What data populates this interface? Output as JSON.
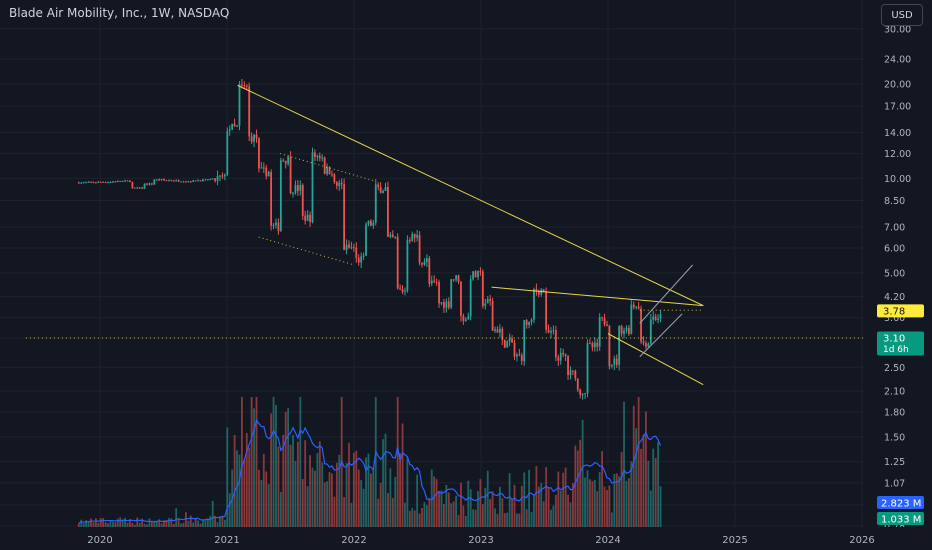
{
  "header": {
    "title": "Blade Air Mobility, Inc., 1W, NASDAQ",
    "currency_label": "USD"
  },
  "colors": {
    "background": "#131722",
    "grid": "#1e222d",
    "up": "#26a69a",
    "down": "#ef5350",
    "trendline": "#e8d44d",
    "channel": "#9aa0ab",
    "volume_ma": "#2962ff",
    "label_yellow": "#ffeb3b",
    "label_green": "#089981",
    "label_blue": "#2962ff",
    "axis_text": "#b2b5be"
  },
  "chart_data": {
    "type": "candlestick",
    "symbol": "Blade Air Mobility, Inc.",
    "interval": "1W",
    "exchange": "NASDAQ",
    "x_ticks": [
      "2020",
      "2021",
      "2022",
      "2023",
      "2024",
      "2025",
      "2026"
    ],
    "y_scale": "log",
    "y_ticks": [
      "30.00",
      "24.00",
      "20.00",
      "17.00",
      "14.00",
      "12.00",
      "10.00",
      "8.50",
      "7.00",
      "6.00",
      "5.00",
      "4.20",
      "3.60",
      "3.10",
      "2.50",
      "2.10",
      "1.80",
      "1.50",
      "1.25",
      "1.07",
      "0.91",
      "0.78"
    ],
    "price_labels": [
      {
        "value": 3.78,
        "text": "3.78",
        "color": "#ffeb3b"
      },
      {
        "value": 3.1,
        "text": "3.10",
        "subtext": "1d 6h",
        "color": "#089981"
      }
    ],
    "volume_labels": [
      {
        "text": "2.823 M",
        "color": "#2962ff"
      },
      {
        "text": "1.033 M",
        "color": "#089981"
      }
    ],
    "price_waypoints": [
      [
        "2019-11",
        9.7
      ],
      [
        "2020-03",
        9.8
      ],
      [
        "2020-04",
        9.3
      ],
      [
        "2020-06",
        9.9
      ],
      [
        "2020-09",
        9.8
      ],
      [
        "2020-12",
        10.0
      ],
      [
        "2021-01",
        14.5
      ],
      [
        "2021-02",
        19.5
      ],
      [
        "2021-03",
        13.5
      ],
      [
        "2021-04",
        10.5
      ],
      [
        "2021-05",
        7.0
      ],
      [
        "2021-06",
        11.5
      ],
      [
        "2021-08",
        7.5
      ],
      [
        "2021-09",
        11.8
      ],
      [
        "2021-11",
        9.5
      ],
      [
        "2021-12",
        6.0
      ],
      [
        "2022-01",
        5.5
      ],
      [
        "2022-03",
        9.3
      ],
      [
        "2022-05",
        4.4
      ],
      [
        "2022-06",
        6.5
      ],
      [
        "2022-08",
        4.6
      ],
      [
        "2022-09",
        4.0
      ],
      [
        "2022-10",
        4.8
      ],
      [
        "2022-11",
        3.6
      ],
      [
        "2022-12",
        4.9
      ],
      [
        "2023-02",
        3.3
      ],
      [
        "2023-04",
        2.7
      ],
      [
        "2023-06",
        4.4
      ],
      [
        "2023-07",
        3.2
      ],
      [
        "2023-08",
        2.7
      ],
      [
        "2023-10",
        2.1
      ],
      [
        "2023-11",
        2.9
      ],
      [
        "2023-12",
        3.5
      ],
      [
        "2024-01",
        2.6
      ],
      [
        "2024-02",
        3.3
      ],
      [
        "2024-03",
        3.95
      ],
      [
        "2024-04",
        3.0
      ],
      [
        "2024-05",
        3.6
      ],
      [
        "2024-06",
        3.1
      ]
    ],
    "volume_waypoints": [
      [
        "2019-11",
        0.05
      ],
      [
        "2020-12",
        0.07
      ],
      [
        "2021-01",
        0.6
      ],
      [
        "2021-02",
        1.25
      ],
      [
        "2021-05",
        0.8
      ],
      [
        "2021-09",
        0.5
      ],
      [
        "2022-03",
        0.6
      ],
      [
        "2022-09",
        0.25
      ],
      [
        "2023-06",
        0.35
      ],
      [
        "2023-10",
        0.5
      ],
      [
        "2024-01",
        0.3
      ],
      [
        "2024-03",
        0.9
      ],
      [
        "2024-06",
        0.35
      ]
    ],
    "annotations": [
      {
        "kind": "trendline",
        "points": [
          [
            "2021-02",
            19.8
          ],
          [
            "2024-10",
            3.93
          ]
        ]
      },
      {
        "kind": "trendline",
        "points": [
          [
            "2023-02",
            4.5
          ],
          [
            "2024-10",
            3.93
          ]
        ]
      },
      {
        "kind": "trendline",
        "points": [
          [
            "2024-01",
            3.2
          ],
          [
            "2024-10",
            2.2
          ]
        ]
      },
      {
        "kind": "dotted",
        "points": [
          [
            "2021-06",
            12.0
          ],
          [
            "2022-03",
            9.8
          ]
        ]
      },
      {
        "kind": "dotted",
        "points": [
          [
            "2021-04",
            6.5
          ],
          [
            "2022-01",
            5.3
          ]
        ]
      },
      {
        "kind": "dotted",
        "points": [
          [
            "2024-04",
            3.8
          ],
          [
            "2024-10",
            3.8
          ]
        ]
      },
      {
        "kind": "dotted",
        "points": [
          [
            "2019-06",
            3.1
          ],
          [
            "2026-06",
            3.1
          ]
        ]
      },
      {
        "kind": "channel",
        "points": [
          [
            "2024-04",
            3.45
          ],
          [
            "2024-09",
            5.3
          ]
        ]
      },
      {
        "kind": "channel",
        "points": [
          [
            "2024-04",
            2.7
          ],
          [
            "2024-08",
            3.7
          ]
        ]
      }
    ]
  }
}
